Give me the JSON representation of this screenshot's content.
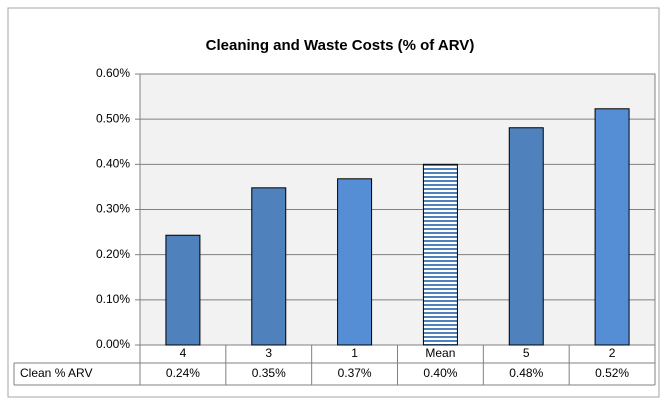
{
  "chart_data": {
    "type": "bar",
    "title": "Cleaning and Waste Costs (% of ARV)",
    "categories": [
      "4",
      "3",
      "1",
      "Mean",
      "5",
      "2"
    ],
    "series": [
      {
        "name": "Clean % ARV",
        "colors": [
          "#4f81bd",
          "#4f81bd",
          "#558ed5",
          "#4f81bd",
          "#4f81bd",
          "#558ed5"
        ],
        "bar_styles": [
          "solid",
          "solid",
          "solid",
          "horizontal-stripes",
          "solid",
          "solid"
        ],
        "values": [
          0.243,
          0.348,
          0.368,
          0.4,
          0.481,
          0.523
        ],
        "value_labels": [
          "0.24%",
          "0.35%",
          "0.37%",
          "0.40%",
          "0.48%",
          "0.52%"
        ]
      }
    ],
    "ylim": [
      0,
      0.6
    ],
    "yticks": [
      {
        "value": 0,
        "label": "0.00%"
      },
      {
        "value": 0.1,
        "label": "0.10%"
      },
      {
        "value": 0.2,
        "label": "0.20%"
      },
      {
        "value": 0.3,
        "label": "0.30%"
      },
      {
        "value": 0.4,
        "label": "0.40%"
      },
      {
        "value": 0.5,
        "label": "0.50%"
      },
      {
        "value": 0.6,
        "label": "0.60%"
      }
    ],
    "grid": true
  }
}
